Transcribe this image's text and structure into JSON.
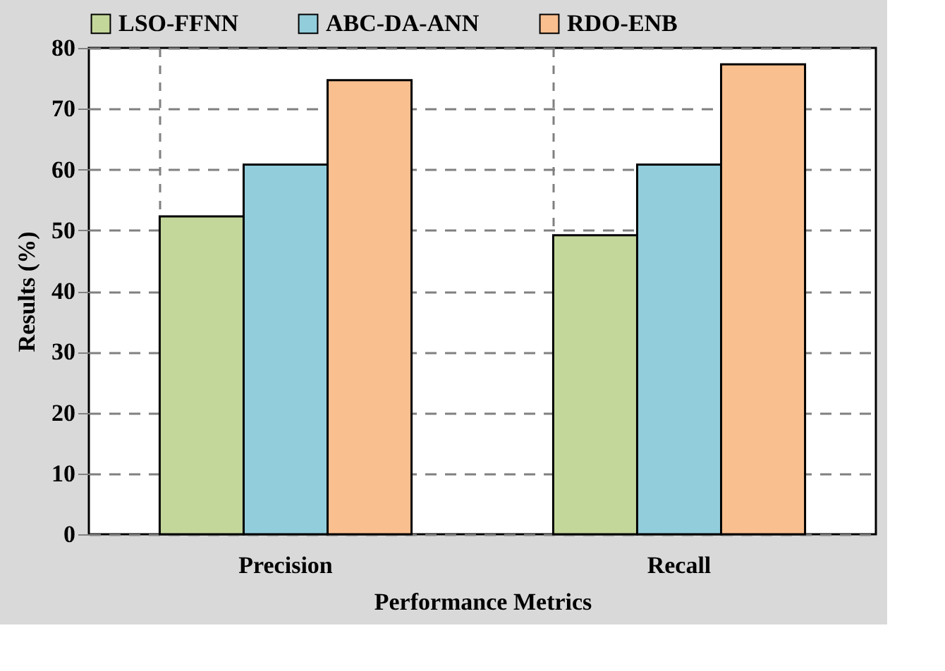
{
  "chart_data": {
    "type": "bar",
    "xlabel": "Performance Metrics",
    "ylabel": "Results (%)",
    "categories": [
      "Precision",
      "Recall"
    ],
    "series": [
      {
        "name": "LSO-FFNN",
        "color": "#c4d79b",
        "values": [
          52.3,
          49.2
        ]
      },
      {
        "name": "ABC-DA-ANN",
        "color": "#92cddc",
        "values": [
          60.8,
          60.8
        ]
      },
      {
        "name": "RDO-ENB",
        "color": "#fabf8f",
        "values": [
          74.7,
          77.3
        ]
      }
    ],
    "ylim": [
      0,
      80
    ],
    "yticks": [
      0,
      10,
      20,
      30,
      40,
      50,
      60,
      70,
      80
    ],
    "grid": true,
    "legend": "top"
  }
}
